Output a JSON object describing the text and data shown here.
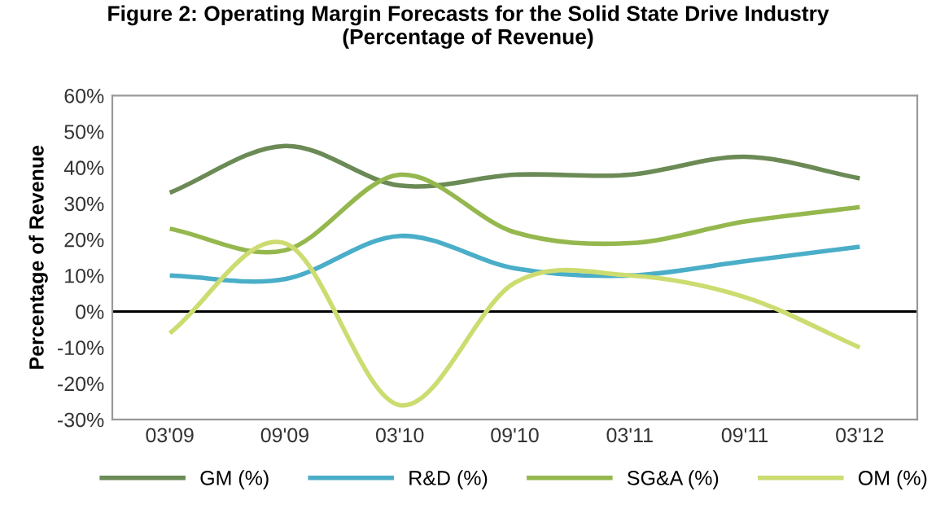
{
  "chart_data": {
    "type": "line",
    "title": "Figure 2: Operating Margin Forecasts for the Solid State Drive Industry\n(Percentage of Revenue)",
    "ylabel": "Percentage of Revenue",
    "categories": [
      "03'09",
      "09'09",
      "03'10",
      "09'10",
      "03'11",
      "09'11",
      "03'12"
    ],
    "series": [
      {
        "name": "GM (%)",
        "color": "#6b8a55",
        "values": [
          33,
          46,
          35,
          38,
          38,
          43,
          37
        ]
      },
      {
        "name": "R&D (%)",
        "color": "#4aaec8",
        "values": [
          10,
          9,
          21,
          12,
          10,
          14,
          18
        ]
      },
      {
        "name": "SG&A (%)",
        "color": "#95b84e",
        "values": [
          23,
          17,
          38,
          22,
          19,
          25,
          29
        ]
      },
      {
        "name": "OM (%)",
        "color": "#cddc70",
        "values": [
          -6,
          19,
          -26,
          8,
          10,
          4,
          -10
        ]
      }
    ],
    "ylim": [
      -30,
      60
    ],
    "yticks": [
      {
        "value": -30,
        "label": "-30%"
      },
      {
        "value": -20,
        "label": "-20%"
      },
      {
        "value": -10,
        "label": "-10%"
      },
      {
        "value": 0,
        "label": "0%"
      },
      {
        "value": 10,
        "label": "10%"
      },
      {
        "value": 20,
        "label": "20%"
      },
      {
        "value": 30,
        "label": "30%"
      },
      {
        "value": 40,
        "label": "40%"
      },
      {
        "value": 50,
        "label": "50%"
      },
      {
        "value": 60,
        "label": "60%"
      }
    ],
    "ref_lines": [
      {
        "axis": "y",
        "value": 0,
        "color": "#000000"
      }
    ],
    "grid": false,
    "legend": "bottom",
    "line_style": "solid",
    "marker": "none"
  }
}
